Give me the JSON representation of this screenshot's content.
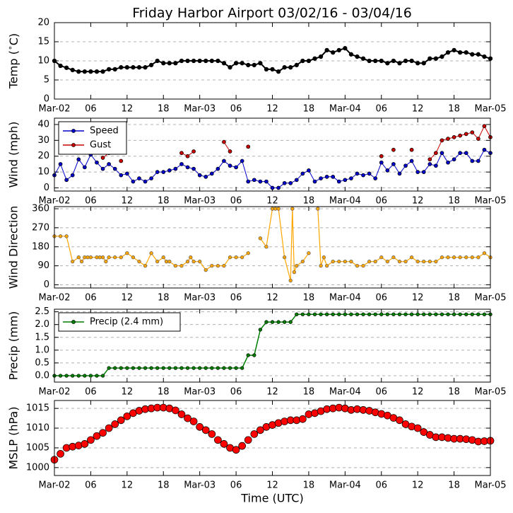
{
  "chart_data": [
    {
      "type": "line",
      "title": "Friday Harbor Airport 03/02/16 - 03/04/16",
      "ylabel": "Temp ($^\\circ$C)",
      "x": [
        0,
        1,
        2,
        3,
        4,
        5,
        6,
        7,
        8,
        9,
        10,
        11,
        12,
        13,
        14,
        15,
        16,
        17,
        18,
        19,
        20,
        21,
        22,
        23,
        24,
        25,
        26,
        27,
        28,
        29,
        30,
        31,
        32,
        33,
        34,
        35,
        36,
        37,
        38,
        39,
        40,
        41,
        42,
        43,
        44,
        45,
        46,
        47,
        48,
        49,
        50,
        51,
        52,
        53,
        54,
        55,
        56,
        57,
        58,
        59,
        60,
        61,
        62,
        63,
        64,
        65,
        66,
        67,
        68,
        69,
        70,
        71,
        72
      ],
      "series": [
        {
          "name": "Temp",
          "color": "#000000",
          "values": [
            10,
            8.7,
            8.2,
            7.6,
            7.2,
            7.2,
            7.2,
            7.2,
            7.2,
            7.8,
            7.8,
            8.3,
            8.3,
            8.3,
            8.3,
            8.3,
            8.9,
            10,
            9.4,
            9.4,
            9.4,
            10,
            10,
            10,
            10,
            10,
            10,
            10,
            9.4,
            8.3,
            9.4,
            9.4,
            8.9,
            8.9,
            9.4,
            7.8,
            7.8,
            7.2,
            8.3,
            8.3,
            8.9,
            10,
            10,
            10.6,
            11.1,
            12.8,
            12.2,
            12.8,
            13.3,
            11.7,
            11.1,
            10.6,
            10,
            10,
            10,
            9.4,
            10,
            9.4,
            10,
            10,
            9.4,
            9.4,
            10.6,
            10.6,
            11.1,
            12.2,
            12.8,
            12.2,
            12.2,
            11.7,
            11.7,
            11.1,
            10.6
          ]
        }
      ],
      "xlim": [
        0,
        72
      ],
      "xticks": [
        {
          "value": 0,
          "label": "Mar-02"
        },
        {
          "value": 6,
          "label": "06"
        },
        {
          "value": 12,
          "label": "12"
        },
        {
          "value": 18,
          "label": "18"
        },
        {
          "value": 24,
          "label": "Mar-03"
        },
        {
          "value": 30,
          "label": "06"
        },
        {
          "value": 36,
          "label": "12"
        },
        {
          "value": 42,
          "label": "18"
        },
        {
          "value": 48,
          "label": "Mar-04"
        },
        {
          "value": 54,
          "label": "06"
        },
        {
          "value": 60,
          "label": "12"
        },
        {
          "value": 66,
          "label": "18"
        },
        {
          "value": 72,
          "label": "Mar-05"
        }
      ],
      "ylim": [
        0,
        20
      ],
      "yticks": [
        0,
        5,
        10,
        15,
        20
      ],
      "grid": true
    },
    {
      "type": "line",
      "ylabel": "Wind (mph)",
      "legend": "upper left",
      "x": [
        0,
        1,
        2,
        3,
        4,
        5,
        6,
        7,
        8,
        9,
        10,
        11,
        12,
        13,
        14,
        15,
        16,
        17,
        18,
        19,
        20,
        21,
        22,
        23,
        24,
        25,
        26,
        27,
        28,
        29,
        30,
        31,
        32,
        33,
        34,
        35,
        36,
        37,
        38,
        39,
        40,
        41,
        42,
        43,
        44,
        45,
        46,
        47,
        48,
        49,
        50,
        51,
        52,
        53,
        54,
        55,
        56,
        57,
        58,
        59,
        60,
        61,
        62,
        63,
        64,
        65,
        66,
        67,
        68,
        69,
        70,
        71,
        72
      ],
      "series": [
        {
          "name": "Speed",
          "color": "#0000cc",
          "values": [
            8,
            15,
            5,
            8,
            18,
            13,
            21,
            16,
            12,
            15,
            12,
            8,
            9,
            4,
            6,
            4,
            6,
            10,
            10,
            11,
            12,
            15,
            13,
            12,
            8,
            7,
            9,
            12,
            17,
            14,
            13,
            17,
            4,
            5,
            4,
            4,
            0,
            0,
            3,
            3,
            5,
            9,
            11,
            4,
            6,
            7,
            7,
            4,
            5,
            6,
            9,
            8,
            9,
            6,
            16,
            11,
            15,
            9,
            14,
            17,
            10,
            10,
            15,
            14,
            22,
            16,
            18,
            22,
            22,
            17,
            17,
            24,
            22
          ]
        },
        {
          "name": "Gust",
          "color": "#cc0000",
          "values": [
            null,
            null,
            null,
            null,
            23,
            null,
            24,
            null,
            19,
            22,
            null,
            17,
            null,
            null,
            null,
            null,
            null,
            null,
            null,
            null,
            null,
            22,
            20,
            23,
            null,
            null,
            null,
            null,
            29,
            23,
            null,
            null,
            26,
            null,
            null,
            null,
            null,
            null,
            null,
            null,
            null,
            null,
            null,
            null,
            null,
            null,
            null,
            null,
            null,
            null,
            null,
            null,
            null,
            null,
            20,
            null,
            24,
            null,
            null,
            24,
            null,
            null,
            18,
            22,
            30,
            31,
            32,
            33,
            34,
            35,
            31,
            39,
            32
          ]
        }
      ],
      "xlim": [
        0,
        72
      ],
      "xticks": [
        {
          "value": 0,
          "label": "Mar-02"
        },
        {
          "value": 6,
          "label": "06"
        },
        {
          "value": 12,
          "label": "12"
        },
        {
          "value": 18,
          "label": "18"
        },
        {
          "value": 24,
          "label": "Mar-03"
        },
        {
          "value": 30,
          "label": "06"
        },
        {
          "value": 36,
          "label": "12"
        },
        {
          "value": 42,
          "label": "18"
        },
        {
          "value": 48,
          "label": "Mar-04"
        },
        {
          "value": 54,
          "label": "06"
        },
        {
          "value": 60,
          "label": "12"
        },
        {
          "value": 66,
          "label": "18"
        },
        {
          "value": 72,
          "label": "Mar-05"
        }
      ],
      "ylim": [
        -2,
        44
      ],
      "yticks": [
        0,
        10,
        20,
        30,
        40
      ],
      "grid": true
    },
    {
      "type": "line",
      "ylabel": "Wind Direction",
      "x": [
        0,
        1,
        2,
        3,
        4,
        4.5,
        5,
        5.5,
        6,
        7,
        7.5,
        8,
        8.5,
        9,
        10,
        11,
        12,
        13,
        14,
        15,
        16,
        17,
        18,
        18.5,
        19,
        20,
        21,
        22,
        22.5,
        23,
        24,
        25,
        26,
        27,
        28,
        29,
        30,
        31,
        32,
        33,
        34,
        35,
        36,
        36.5,
        37,
        38,
        39,
        39.3,
        39.6,
        40,
        41,
        42,
        42.7,
        43.5,
        44,
        44.5,
        45,
        46,
        47,
        48,
        49,
        50,
        51,
        52,
        53,
        54,
        55,
        56,
        57,
        58,
        59,
        60,
        61,
        62,
        63,
        64,
        65,
        66,
        67,
        68,
        69,
        70,
        71,
        72
      ],
      "series": [
        {
          "name": "Wind Direction",
          "color": "#ffa500",
          "values": [
            230,
            230,
            230,
            110,
            130,
            110,
            130,
            130,
            130,
            130,
            130,
            130,
            110,
            130,
            130,
            130,
            150,
            130,
            110,
            90,
            150,
            110,
            130,
            110,
            110,
            90,
            90,
            110,
            130,
            110,
            110,
            70,
            90,
            90,
            90,
            130,
            130,
            130,
            150,
            null,
            220,
            180,
            360,
            360,
            360,
            130,
            20,
            360,
            60,
            90,
            110,
            150,
            null,
            360,
            90,
            130,
            90,
            110,
            110,
            110,
            110,
            90,
            90,
            110,
            110,
            130,
            110,
            130,
            110,
            110,
            130,
            110,
            110,
            110,
            110,
            130,
            130,
            130,
            130,
            130,
            130,
            130,
            150,
            130
          ]
        }
      ],
      "xlim": [
        0,
        72
      ],
      "xticks": [
        {
          "value": 0,
          "label": "Mar-02"
        },
        {
          "value": 6,
          "label": "06"
        },
        {
          "value": 12,
          "label": "12"
        },
        {
          "value": 18,
          "label": "18"
        },
        {
          "value": 24,
          "label": "Mar-03"
        },
        {
          "value": 30,
          "label": "06"
        },
        {
          "value": 36,
          "label": "12"
        },
        {
          "value": 42,
          "label": "18"
        },
        {
          "value": 48,
          "label": "Mar-04"
        },
        {
          "value": 54,
          "label": "06"
        },
        {
          "value": 60,
          "label": "12"
        },
        {
          "value": 66,
          "label": "18"
        },
        {
          "value": 72,
          "label": "Mar-05"
        }
      ],
      "ylim": [
        -15,
        370
      ],
      "yticks": [
        0,
        90,
        180,
        270,
        360
      ],
      "grid": true
    },
    {
      "type": "line",
      "ylabel": "Precip (mm)",
      "legend": "upper left",
      "x": [
        0,
        1,
        2,
        3,
        4,
        5,
        6,
        7,
        8,
        9,
        10,
        11,
        12,
        13,
        14,
        15,
        16,
        17,
        18,
        19,
        20,
        21,
        22,
        23,
        24,
        25,
        26,
        27,
        28,
        29,
        30,
        31,
        32,
        33,
        34,
        35,
        36,
        37,
        38,
        39,
        40,
        41,
        42,
        43,
        44,
        45,
        46,
        47,
        48,
        49,
        50,
        51,
        52,
        53,
        54,
        55,
        56,
        57,
        58,
        59,
        60,
        61,
        62,
        63,
        64,
        65,
        66,
        67,
        68,
        69,
        70,
        71,
        72
      ],
      "series": [
        {
          "name": "Precip (2.4 mm)",
          "color": "#007f00",
          "values": [
            0,
            0,
            0,
            0,
            0,
            0,
            0,
            0,
            0,
            0.3,
            0.3,
            0.3,
            0.3,
            0.3,
            0.3,
            0.3,
            0.3,
            0.3,
            0.3,
            0.3,
            0.3,
            0.3,
            0.3,
            0.3,
            0.3,
            0.3,
            0.3,
            0.3,
            0.3,
            0.3,
            0.3,
            0.3,
            0.8,
            0.8,
            1.8,
            2.1,
            2.1,
            2.1,
            2.1,
            2.1,
            2.4,
            2.4,
            2.4,
            2.4,
            2.4,
            2.4,
            2.4,
            2.4,
            2.4,
            2.4,
            2.4,
            2.4,
            2.4,
            2.4,
            2.4,
            2.4,
            2.4,
            2.4,
            2.4,
            2.4,
            2.4,
            2.4,
            2.4,
            2.4,
            2.4,
            2.4,
            2.4,
            2.4,
            2.4,
            2.4,
            2.4,
            2.4,
            2.4
          ]
        }
      ],
      "xlim": [
        0,
        72
      ],
      "xticks": [
        {
          "value": 0,
          "label": "Mar-02"
        },
        {
          "value": 6,
          "label": "06"
        },
        {
          "value": 12,
          "label": "12"
        },
        {
          "value": 18,
          "label": "18"
        },
        {
          "value": 24,
          "label": "Mar-03"
        },
        {
          "value": 30,
          "label": "06"
        },
        {
          "value": 36,
          "label": "12"
        },
        {
          "value": 42,
          "label": "18"
        },
        {
          "value": 48,
          "label": "Mar-04"
        },
        {
          "value": 54,
          "label": "06"
        },
        {
          "value": 60,
          "label": "12"
        },
        {
          "value": 66,
          "label": "18"
        },
        {
          "value": 72,
          "label": "Mar-05"
        }
      ],
      "ylim": [
        -0.25,
        2.6
      ],
      "yticks": [
        {
          "value": 0,
          "label": "0.0"
        },
        {
          "value": 0.5,
          "label": "0.5"
        },
        {
          "value": 1,
          "label": "1.0"
        },
        {
          "value": 1.5,
          "label": "1.5"
        },
        {
          "value": 2,
          "label": "2.0"
        },
        {
          "value": 2.5,
          "label": "2.5"
        }
      ],
      "grid": true
    },
    {
      "type": "line",
      "ylabel": "MSLP (hPa)",
      "xlabel": "Time (UTC)",
      "x": [
        0,
        1,
        2,
        3,
        4,
        5,
        6,
        7,
        8,
        9,
        10,
        11,
        12,
        13,
        14,
        15,
        16,
        17,
        18,
        19,
        20,
        21,
        22,
        23,
        24,
        25,
        26,
        27,
        28,
        29,
        30,
        31,
        32,
        33,
        34,
        35,
        36,
        37,
        38,
        39,
        40,
        41,
        42,
        43,
        44,
        45,
        46,
        47,
        48,
        49,
        50,
        51,
        52,
        53,
        54,
        55,
        56,
        57,
        58,
        59,
        60,
        61,
        62,
        63,
        64,
        65,
        66,
        67,
        68,
        69,
        70,
        71,
        72
      ],
      "series": [
        {
          "name": "MSLP",
          "color": "#ff0000",
          "values": [
            1002,
            1003.5,
            1005,
            1005.3,
            1005.6,
            1006,
            1007,
            1008,
            1008.8,
            1010,
            1011,
            1012,
            1013,
            1013.8,
            1014.4,
            1014.8,
            1015,
            1015.2,
            1015.2,
            1015,
            1014.5,
            1013.5,
            1012.5,
            1011.7,
            1010.3,
            1009.5,
            1008.5,
            1007,
            1006,
            1005,
            1004.5,
            1005.5,
            1007,
            1008.5,
            1009.5,
            1010.3,
            1010.8,
            1011.3,
            1011.7,
            1012,
            1012,
            1012.3,
            1013.5,
            1013.8,
            1014.3,
            1014.8,
            1015,
            1015.2,
            1015,
            1014.6,
            1014.8,
            1014.6,
            1014.4,
            1014,
            1013.6,
            1013.2,
            1012.6,
            1012,
            1011,
            1010.4,
            1010,
            1009,
            1008.3,
            1007.7,
            1007.7,
            1007.5,
            1007.3,
            1007.3,
            1007.2,
            1007,
            1006.6,
            1006.7,
            1006.8
          ]
        }
      ],
      "xlim": [
        0,
        72
      ],
      "xticks": [
        {
          "value": 0,
          "label": "Mar-02"
        },
        {
          "value": 6,
          "label": "06"
        },
        {
          "value": 12,
          "label": "12"
        },
        {
          "value": 18,
          "label": "18"
        },
        {
          "value": 24,
          "label": "Mar-03"
        },
        {
          "value": 30,
          "label": "06"
        },
        {
          "value": 36,
          "label": "12"
        },
        {
          "value": 42,
          "label": "18"
        },
        {
          "value": 48,
          "label": "Mar-04"
        },
        {
          "value": 54,
          "label": "06"
        },
        {
          "value": 60,
          "label": "12"
        },
        {
          "value": 66,
          "label": "18"
        },
        {
          "value": 72,
          "label": "Mar-05"
        }
      ],
      "ylim": [
        998,
        1017
      ],
      "yticks": [
        1000,
        1005,
        1010,
        1015
      ],
      "grid": true
    }
  ]
}
